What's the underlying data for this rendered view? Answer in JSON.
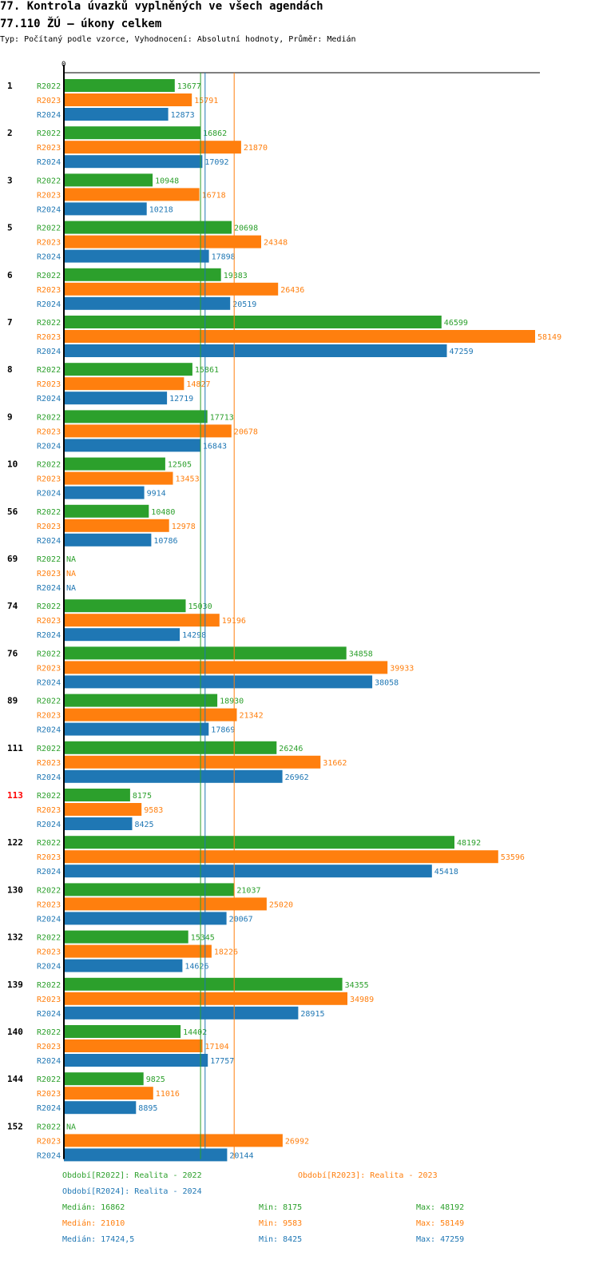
{
  "header": {
    "title": "77. Kontrola úvazků vyplněných ve všech agendách",
    "subtitle": "77.110 ŽÚ – úkony celkem",
    "description": "Typ: Počítaný podle vzorce, Vyhodnocení: Absolutní hodnoty, Průměr: Medián"
  },
  "colors": {
    "R2022": "#2ca02c",
    "R2023": "#ff7f0e",
    "R2024": "#1f77b4",
    "highlight": "#ff0000"
  },
  "chart_data": {
    "type": "bar",
    "orientation": "horizontal",
    "axis_zero_label": "0",
    "xlim": [
      0,
      58149
    ],
    "na_label": "NA",
    "highlight_category": "113",
    "series_names": [
      "R2022",
      "R2023",
      "R2024"
    ],
    "categories": [
      "1",
      "2",
      "3",
      "5",
      "6",
      "7",
      "8",
      "9",
      "10",
      "56",
      "69",
      "74",
      "76",
      "89",
      "111",
      "113",
      "122",
      "130",
      "132",
      "139",
      "140",
      "144",
      "152"
    ],
    "series": [
      {
        "name": "R2022",
        "values": [
          13677,
          16862,
          10948,
          20698,
          19383,
          46599,
          15861,
          17713,
          12505,
          10480,
          null,
          15030,
          34858,
          18930,
          26246,
          8175,
          48192,
          21037,
          15345,
          34355,
          14402,
          9825,
          null
        ]
      },
      {
        "name": "R2023",
        "values": [
          15791,
          21870,
          16718,
          24348,
          26436,
          58149,
          14827,
          20678,
          13453,
          12978,
          null,
          19196,
          39933,
          21342,
          31662,
          9583,
          53596,
          25020,
          18226,
          34989,
          17104,
          11016,
          26992
        ]
      },
      {
        "name": "R2024",
        "values": [
          12873,
          17092,
          10218,
          17898,
          20519,
          47259,
          12719,
          16843,
          9914,
          10786,
          null,
          14298,
          38058,
          17869,
          26962,
          8425,
          45418,
          20067,
          14626,
          28915,
          17757,
          8895,
          20144
        ]
      }
    ],
    "medians": {
      "R2022": 16862,
      "R2023": 21010,
      "R2024": 17424.5
    }
  },
  "legend": {
    "periods": [
      {
        "key": "R2022",
        "text": "Období[R2022]: Realita - 2022"
      },
      {
        "key": "R2023",
        "text": "Období[R2023]: Realita - 2023"
      },
      {
        "key": "R2024",
        "text": "Období[R2024]: Realita - 2024"
      }
    ],
    "stats": [
      {
        "key": "R2022",
        "median": "Medián: 16862",
        "min": "Min: 8175",
        "max": "Max: 48192"
      },
      {
        "key": "R2023",
        "median": "Medián: 21010",
        "min": "Min: 9583",
        "max": "Max: 58149"
      },
      {
        "key": "R2024",
        "median": "Medián: 17424,5",
        "min": "Min: 8425",
        "max": "Max: 47259"
      }
    ]
  }
}
